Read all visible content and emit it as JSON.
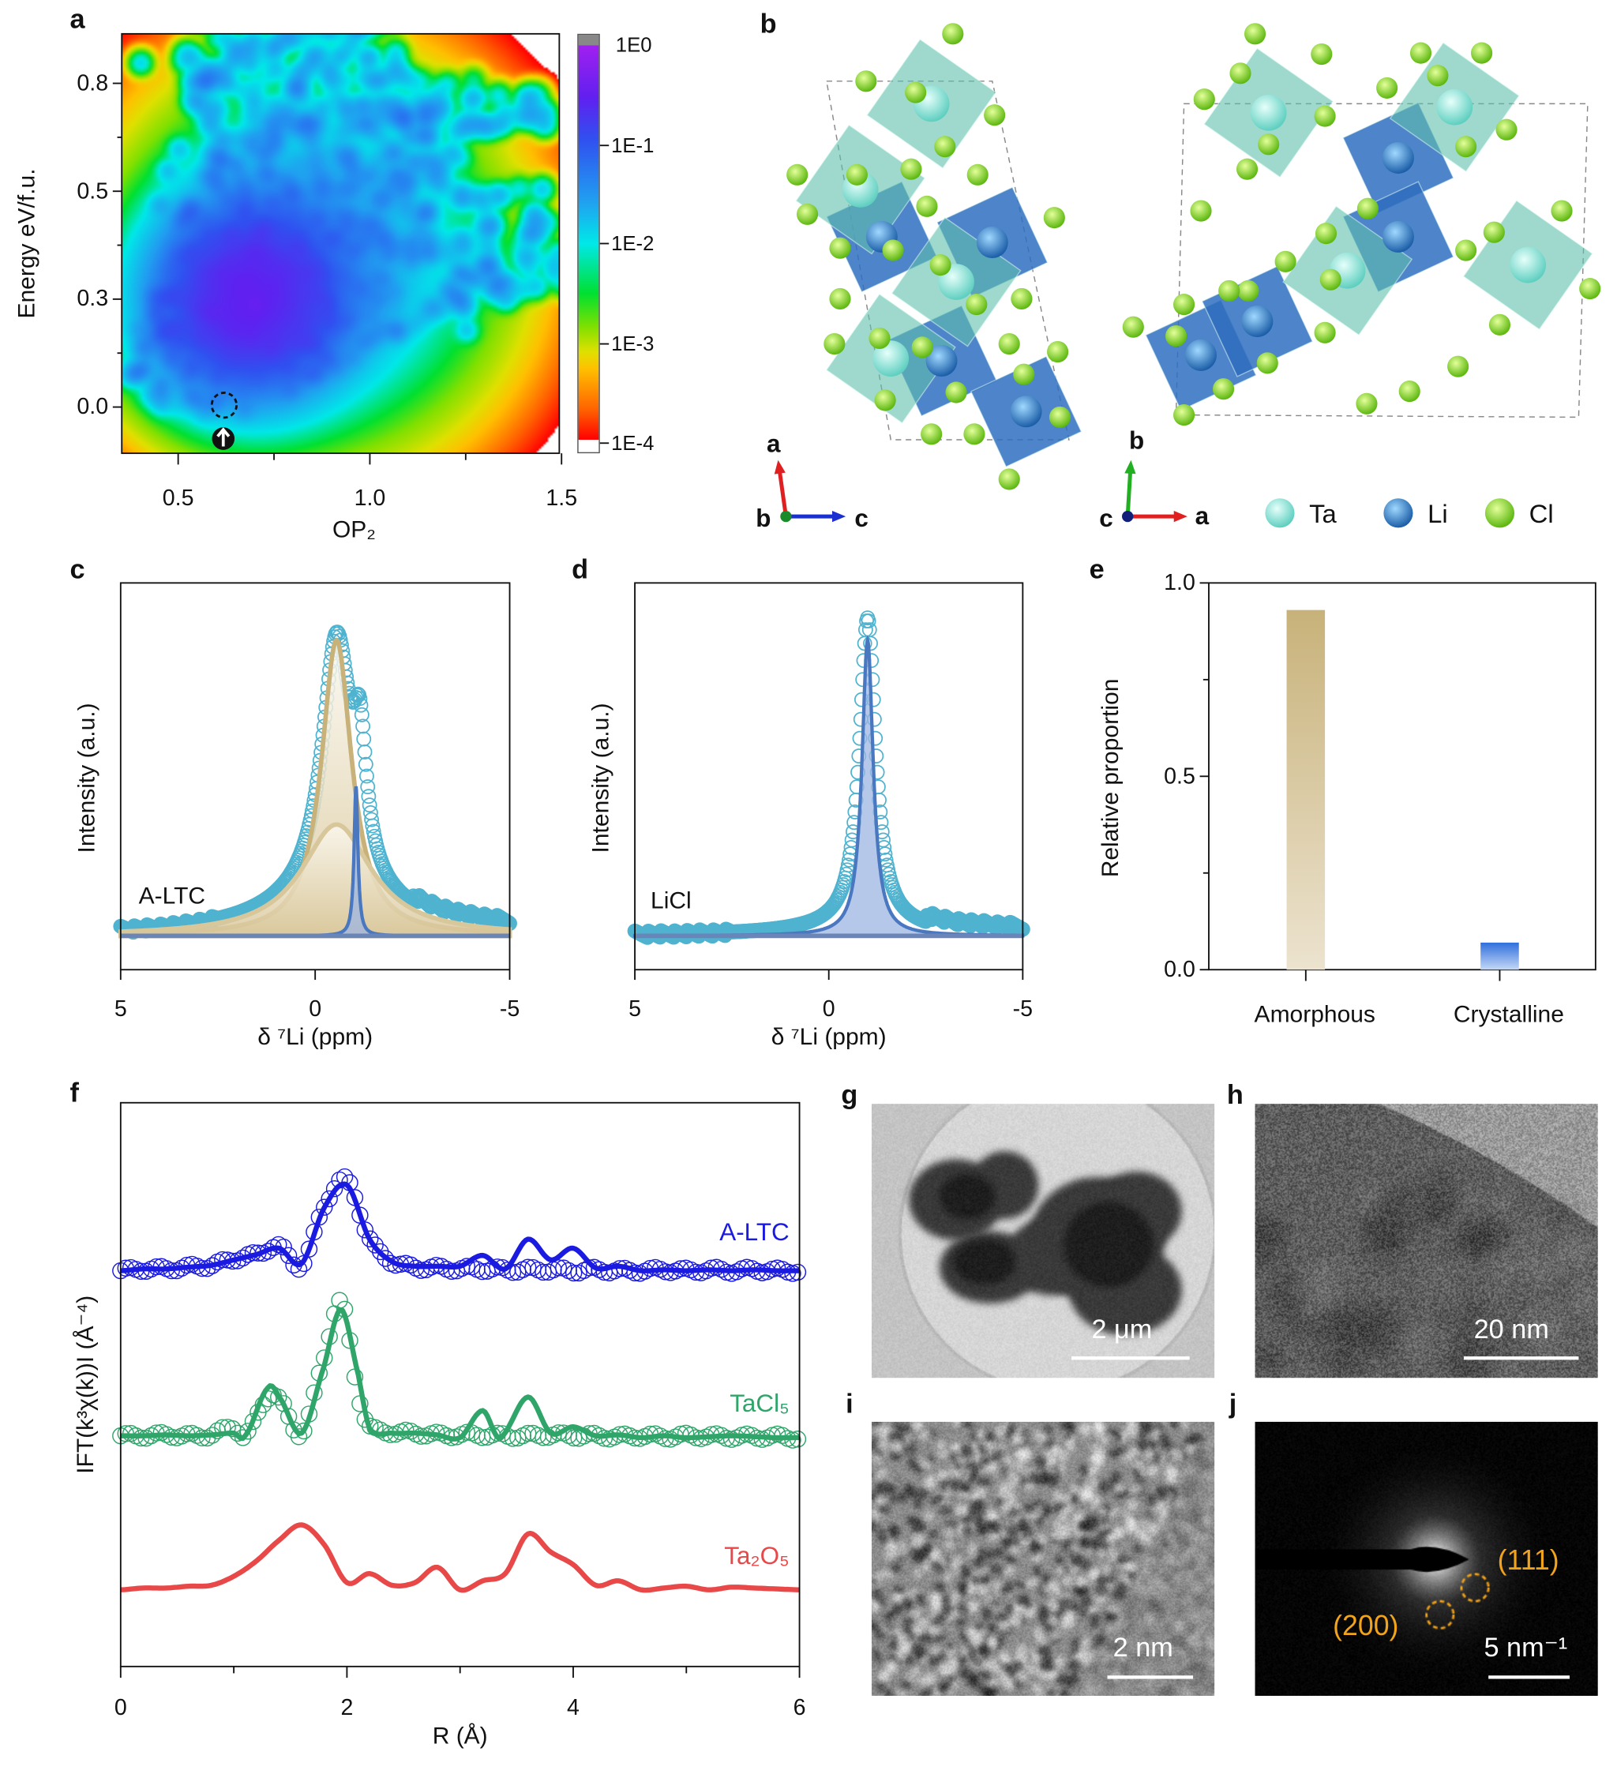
{
  "panel_labels": {
    "a": "a",
    "b": "b",
    "c": "c",
    "d": "d",
    "e": "e",
    "f": "f",
    "g": "g",
    "h": "h",
    "i": "i",
    "j": "j"
  },
  "chart_data": [
    {
      "panel": "a",
      "type": "heatmap",
      "xlabel": "OP₂",
      "ylabel": "Energy eV/f.u.",
      "x_ticks": [
        "0.5",
        "1.0",
        "1.5"
      ],
      "y_ticks": [
        "0.0",
        "0.3",
        "0.5",
        "0.8"
      ],
      "xlim": [
        0.35,
        1.5
      ],
      "colorbar": {
        "scale": "log",
        "ticks": [
          "1E0",
          "1E-1",
          "1E-2",
          "1E-3",
          "1E-4"
        ],
        "colors": [
          "#a020f0",
          "#3050f0",
          "#00e8e8",
          "#00e030",
          "#ffc000",
          "#ff0000"
        ]
      },
      "density_peak": {
        "x": 0.68,
        "y": 0.25
      },
      "highlighted_point": {
        "x": 0.62,
        "y": 0.02,
        "marker": "dashed-circle",
        "icon": "up-arrow-circle-icon"
      }
    },
    {
      "panel": "c",
      "type": "line",
      "xlabel": "δ ⁷Li (ppm)",
      "ylabel": "Intensity (a.u.)",
      "x_ticks": [
        "5",
        "0",
        "-5"
      ],
      "xlim": [
        5,
        -5
      ],
      "annotation": "A-LTC",
      "series": [
        {
          "style": "open-circles",
          "color": "#4fb3d0",
          "components": [
            {
              "center": -0.55,
              "height": 0.8,
              "fwhm": 0.9
            },
            {
              "center": -0.5,
              "height": 0.12,
              "fwhm": 4.0
            },
            {
              "center": -1.15,
              "height": 0.35,
              "fwhm": 0.4
            }
          ]
        },
        {
          "style": "filled",
          "color": "#c8b27a",
          "components": [
            {
              "center": -0.55,
              "height": 0.93,
              "fwhm": 0.95
            }
          ]
        },
        {
          "style": "filled",
          "color": "#d8c79a",
          "components": [
            {
              "center": -0.55,
              "height": 0.35,
              "fwhm": 2.2
            }
          ]
        },
        {
          "style": "filled",
          "color": "#4a78c0",
          "components": [
            {
              "center": -1.05,
              "height": 0.47,
              "fwhm": 0.12
            }
          ]
        }
      ]
    },
    {
      "panel": "d",
      "type": "line",
      "xlabel": "δ ⁷Li (ppm)",
      "ylabel": "Intensity (a.u.)",
      "x_ticks": [
        "5",
        "0",
        "-5"
      ],
      "xlim": [
        5,
        -5
      ],
      "annotation": "LiCl",
      "series": [
        {
          "style": "open-circles",
          "color": "#4fb3d0",
          "components": [
            {
              "center": -1.0,
              "height": 0.97,
              "fwhm": 0.5
            },
            {
              "center": -1.0,
              "height": 0.03,
              "fwhm": 4.0
            }
          ]
        },
        {
          "style": "filled",
          "color": "#4a78c0",
          "components": [
            {
              "center": -1.0,
              "height": 0.93,
              "fwhm": 0.35
            }
          ]
        }
      ]
    },
    {
      "panel": "e",
      "type": "bar",
      "ylabel": "Relative proportion",
      "categories": [
        "Amorphous",
        "Crystalline"
      ],
      "values": [
        0.93,
        0.07
      ],
      "colors": [
        [
          "#c8b27a",
          "#ece3cf"
        ],
        [
          "#2f6fdc",
          "#c4d8f6"
        ]
      ],
      "y_ticks": [
        "0.0",
        "0.5",
        "1.0"
      ],
      "ylim": [
        0,
        1.0
      ]
    },
    {
      "panel": "f",
      "type": "line",
      "xlabel": "R (Å)",
      "ylabel": "IFT(k³χ(k))I (Å⁻⁴)",
      "x_ticks": [
        "0",
        "2",
        "4",
        "6"
      ],
      "xlim": [
        0,
        6
      ],
      "series": [
        {
          "name": "A-LTC",
          "color": "#1a1ae0",
          "x": [
            0,
            0.2,
            0.4,
            0.6,
            0.8,
            1.0,
            1.2,
            1.4,
            1.6,
            1.8,
            2.0,
            2.2,
            2.4,
            2.6,
            2.8,
            3.0,
            3.2,
            3.4,
            3.6,
            3.8,
            4.0,
            4.2,
            4.4,
            4.6,
            4.8,
            5.0,
            5.2,
            5.4,
            5.6,
            5.8,
            6.0
          ],
          "fit": [
            0,
            0.02,
            0.02,
            0.04,
            0.06,
            0.12,
            0.18,
            0.25,
            0.08,
            0.7,
            0.95,
            0.35,
            0.1,
            0.05,
            0.05,
            0.05,
            0.17,
            0.02,
            0.35,
            0.12,
            0.25,
            0.03,
            0.05,
            0,
            0.01,
            0,
            0.01,
            0,
            0.01,
            0,
            0
          ],
          "data": [
            0,
            0.02,
            0.02,
            0.04,
            0.06,
            0.13,
            0.18,
            0.27,
            0.06,
            0.72,
            1.0,
            0.35,
            0.1,
            0.04,
            0.03,
            0.02,
            0.02,
            0.01,
            0.01,
            0.01,
            0.0,
            0.01,
            0.0,
            0,
            0.01,
            0,
            0.01,
            0,
            0.01,
            0,
            0
          ]
        },
        {
          "name": "TaCl₅",
          "color": "#2fa56a",
          "x": [
            0,
            0.2,
            0.4,
            0.6,
            0.8,
            1.0,
            1.1,
            1.3,
            1.4,
            1.6,
            1.8,
            1.95,
            2.1,
            2.2,
            2.4,
            2.6,
            2.8,
            3.0,
            3.2,
            3.35,
            3.6,
            3.8,
            4.0,
            4.2,
            4.4,
            4.6,
            4.8,
            5.0,
            5.4,
            5.8,
            6.0
          ],
          "fit": [
            0.02,
            0.02,
            0.03,
            0.02,
            0.03,
            0.05,
            0.02,
            0.55,
            0.45,
            0.05,
            0.8,
            1.42,
            0.7,
            0.1,
            0.05,
            0.05,
            0.03,
            0.0,
            0.3,
            0.0,
            0.45,
            0.05,
            0.12,
            0.02,
            0.03,
            0.0,
            0.02,
            0.0,
            0.02,
            0.0,
            0.0
          ],
          "data": [
            0.02,
            0.02,
            0.03,
            0.02,
            0.03,
            0.12,
            0.02,
            0.45,
            0.42,
            0.05,
            0.9,
            1.5,
            0.5,
            0.12,
            0.06,
            0.05,
            0.03,
            0.03,
            0.03,
            0.02,
            0.02,
            0.03,
            0.02,
            0.02,
            0.01,
            0.02,
            0.01,
            0.02,
            0.01,
            0.01,
            0.0
          ]
        },
        {
          "name": "Ta₂O₅",
          "color": "#e84848",
          "x": [
            0,
            0.2,
            0.4,
            0.6,
            0.8,
            1.0,
            1.2,
            1.4,
            1.6,
            1.8,
            2.0,
            2.2,
            2.4,
            2.6,
            2.8,
            3.0,
            3.2,
            3.4,
            3.6,
            3.8,
            4.0,
            4.2,
            4.4,
            4.6,
            4.8,
            5.0,
            5.2,
            5.4,
            5.6,
            5.8,
            6.0
          ],
          "fit": [
            0,
            0.02,
            0.02,
            0.04,
            0.05,
            0.15,
            0.32,
            0.55,
            0.72,
            0.5,
            0.08,
            0.18,
            0.05,
            0.08,
            0.25,
            0.0,
            0.1,
            0.18,
            0.62,
            0.42,
            0.28,
            0.05,
            0.1,
            0.0,
            0.02,
            0.04,
            0.0,
            0.03,
            0.02,
            0.01,
            0.0
          ]
        }
      ]
    }
  ],
  "structure_b": {
    "axes_left": {
      "up": "a",
      "origin": "b",
      "right": "c"
    },
    "axes_right": {
      "up": "b",
      "origin": "c",
      "right": "a"
    },
    "legend": [
      {
        "label": "Ta",
        "color": "#8fe6da"
      },
      {
        "label": "Li",
        "color": "#2f7fd0"
      },
      {
        "label": "Cl",
        "color": "#8ad82a"
      }
    ]
  },
  "images": {
    "g": {
      "scale_bar": "2 μm"
    },
    "h": {
      "scale_bar": "20 nm"
    },
    "i": {
      "scale_bar": "2 nm"
    },
    "j": {
      "scale_bar": "5 nm⁻¹",
      "spots": [
        "(111)",
        "(200)"
      ],
      "spot_color": "#f2a31c"
    }
  }
}
